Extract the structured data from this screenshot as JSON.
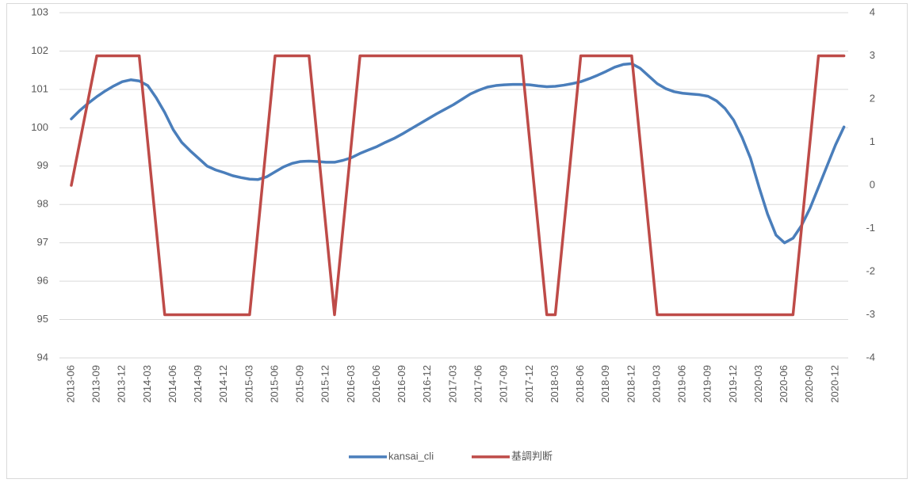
{
  "chart_data": {
    "type": "line",
    "categories": [
      "2013-06",
      null,
      null,
      "2013-09",
      null,
      null,
      "2013-12",
      null,
      null,
      "2014-03",
      null,
      null,
      "2014-06",
      null,
      null,
      "2014-09",
      null,
      null,
      "2014-12",
      null,
      null,
      "2015-03",
      null,
      null,
      "2015-06",
      null,
      null,
      "2015-09",
      null,
      null,
      "2015-12",
      null,
      null,
      "2016-03",
      null,
      null,
      "2016-06",
      null,
      null,
      "2016-09",
      null,
      null,
      "2016-12",
      null,
      null,
      "2017-03",
      null,
      null,
      "2017-06",
      null,
      null,
      "2017-09",
      null,
      null,
      "2017-12",
      null,
      null,
      "2018-03",
      null,
      null,
      "2018-06",
      null,
      null,
      "2018-09",
      null,
      null,
      "2018-12",
      null,
      null,
      "2019-03",
      null,
      null,
      "2019-06",
      null,
      null,
      "2019-09",
      null,
      null,
      "2019-12",
      null,
      null,
      "2020-03",
      null,
      null,
      "2020-06",
      null,
      null,
      "2020-09",
      null,
      null,
      "2020-12",
      null
    ],
    "series": [
      {
        "name": "kansai_cli",
        "color": "#4a7ebb",
        "axis": "y",
        "values": [
          100.23,
          100.45,
          100.64,
          100.81,
          100.96,
          101.09,
          101.2,
          101.25,
          101.22,
          101.1,
          100.78,
          100.4,
          99.95,
          99.62,
          99.4,
          99.2,
          99.0,
          98.9,
          98.83,
          98.75,
          98.7,
          98.66,
          98.65,
          98.72,
          98.85,
          98.98,
          99.07,
          99.12,
          99.13,
          99.12,
          99.1,
          99.1,
          99.15,
          99.22,
          99.33,
          99.42,
          99.51,
          99.62,
          99.72,
          99.84,
          99.97,
          100.1,
          100.23,
          100.36,
          100.48,
          100.6,
          100.74,
          100.88,
          100.98,
          101.06,
          101.1,
          101.12,
          101.13,
          101.13,
          101.12,
          101.09,
          101.07,
          101.08,
          101.11,
          101.15,
          101.2,
          101.28,
          101.37,
          101.47,
          101.58,
          101.65,
          101.67,
          101.55,
          101.35,
          101.15,
          101.02,
          100.94,
          100.9,
          100.88,
          100.86,
          100.82,
          100.7,
          100.5,
          100.2,
          99.75,
          99.2,
          98.45,
          97.75,
          97.2,
          97.0,
          97.12,
          97.45,
          97.9,
          98.45,
          99.0,
          99.55,
          100.02
        ]
      },
      {
        "name": "基調判断",
        "color": "#be4b48",
        "axis": "y2",
        "values": [
          0,
          1,
          2,
          3,
          3,
          3,
          3,
          3,
          3,
          1,
          -1,
          -3,
          -3,
          -3,
          -3,
          -3,
          -3,
          -3,
          -3,
          -3,
          -3,
          -3,
          -1,
          1,
          3,
          3,
          3,
          3,
          3,
          1,
          -1,
          -3,
          -1,
          1,
          3,
          3,
          3,
          3,
          3,
          3,
          3,
          3,
          3,
          3,
          3,
          3,
          3,
          3,
          3,
          3,
          3,
          3,
          3,
          3,
          1,
          -1,
          -3,
          -3,
          -1,
          1,
          3,
          3,
          3,
          3,
          3,
          3,
          3,
          1,
          -1,
          -3,
          -3,
          -3,
          -3,
          -3,
          -3,
          -3,
          -3,
          -3,
          -3,
          -3,
          -3,
          -3,
          -3,
          -3,
          -3,
          -3,
          -1,
          1,
          3,
          3,
          3,
          3
        ]
      }
    ],
    "ylim": [
      94,
      103
    ],
    "yticks": [
      94,
      95,
      96,
      97,
      98,
      99,
      100,
      101,
      102,
      103
    ],
    "y2lim": [
      -4,
      4
    ],
    "y2ticks": [
      -4,
      -3,
      -2,
      -1,
      0,
      1,
      2,
      3,
      4
    ],
    "grid": true,
    "legend": "bottom"
  }
}
